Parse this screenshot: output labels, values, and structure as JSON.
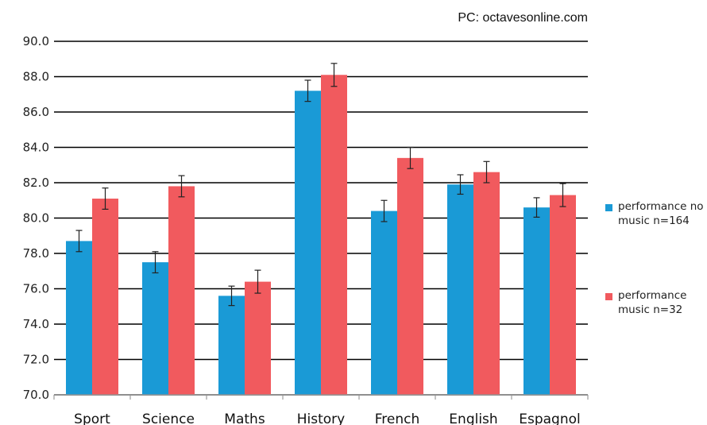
{
  "credit": "PC: octavesonline.com",
  "chart_data": {
    "type": "bar",
    "title": "",
    "xlabel": "",
    "ylabel": "",
    "ylim": [
      70,
      90
    ],
    "yticks": [
      "70.0",
      "72.0",
      "74.0",
      "76.0",
      "78.0",
      "80.0",
      "82.0",
      "84.0",
      "86.0",
      "88.0",
      "90.0"
    ],
    "grid": true,
    "legend_position": "right",
    "categories": [
      "Sport",
      "Science",
      "Maths",
      "History",
      "French",
      "English",
      "Espagnol"
    ],
    "series": [
      {
        "name": "performance no music n=164",
        "color": "#1a9ad6",
        "values": [
          78.7,
          77.5,
          75.6,
          87.2,
          80.4,
          81.9,
          80.6
        ],
        "error": [
          0.6,
          0.6,
          0.55,
          0.6,
          0.6,
          0.55,
          0.55
        ]
      },
      {
        "name": "performance music n=32",
        "color": "#f15a5e",
        "values": [
          81.1,
          81.8,
          76.4,
          88.1,
          83.4,
          82.6,
          81.3
        ],
        "error": [
          0.6,
          0.6,
          0.65,
          0.65,
          0.6,
          0.6,
          0.65
        ]
      }
    ]
  }
}
